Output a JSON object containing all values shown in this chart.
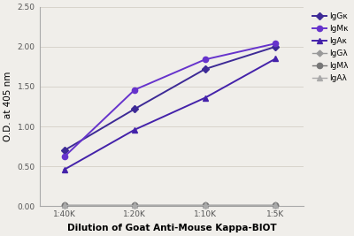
{
  "x_labels": [
    "1:40K",
    "1:20K",
    "1:10K",
    "1:5K"
  ],
  "x_values": [
    1,
    2,
    3,
    4
  ],
  "series": [
    {
      "label": "IgGκ",
      "values": [
        0.7,
        1.22,
        1.72,
        2.0
      ],
      "color": "#3d2a96",
      "marker": "D",
      "markersize": 4,
      "linewidth": 1.4,
      "linestyle": "-"
    },
    {
      "label": "IgMκ",
      "values": [
        0.62,
        1.46,
        1.84,
        2.04
      ],
      "color": "#6633cc",
      "marker": "o",
      "markersize": 4.5,
      "linewidth": 1.4,
      "linestyle": "-"
    },
    {
      "label": "IgAκ",
      "values": [
        0.46,
        0.96,
        1.36,
        1.85
      ],
      "color": "#4422aa",
      "marker": "^",
      "markersize": 5,
      "linewidth": 1.4,
      "linestyle": "-"
    },
    {
      "label": "IgGλ",
      "values": [
        0.02,
        0.02,
        0.02,
        0.02
      ],
      "color": "#999999",
      "marker": "D",
      "markersize": 3.5,
      "linewidth": 1.0,
      "linestyle": "-"
    },
    {
      "label": "IgMλ",
      "values": [
        0.02,
        0.02,
        0.02,
        0.02
      ],
      "color": "#777777",
      "marker": "o",
      "markersize": 4.5,
      "linewidth": 1.0,
      "linestyle": "-"
    },
    {
      "label": "IgAλ",
      "values": [
        0.02,
        0.02,
        0.02,
        0.02
      ],
      "color": "#aaaaaa",
      "marker": "^",
      "markersize": 4.5,
      "linewidth": 1.0,
      "linestyle": "-"
    }
  ],
  "xlabel": "Dilution of Goat Anti-Mouse Kappa-BIOT",
  "ylabel": "O.D. at 405 nm",
  "ylim": [
    0,
    2.5
  ],
  "yticks": [
    0.0,
    0.5,
    1.0,
    1.5,
    2.0,
    2.5
  ],
  "background_color": "#f0eeea",
  "grid_color": "#d8d4cc",
  "legend_fontsize": 6.5,
  "axis_label_fontsize": 7.5,
  "tick_fontsize": 6.5
}
